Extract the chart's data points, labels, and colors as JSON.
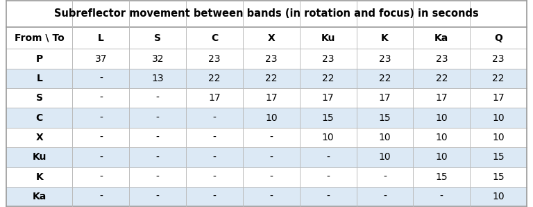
{
  "title": "Subreflector movement between bands (in rotation and focus) in seconds",
  "col_headers": [
    "From \\ To",
    "L",
    "S",
    "C",
    "X",
    "Ku",
    "K",
    "Ka",
    "Q"
  ],
  "row_headers": [
    "P",
    "L",
    "S",
    "C",
    "X",
    "Ku",
    "K",
    "Ka"
  ],
  "table_data": [
    [
      "37",
      "32",
      "23",
      "23",
      "23",
      "23",
      "23",
      "23"
    ],
    [
      "-",
      "13",
      "22",
      "22",
      "22",
      "22",
      "22",
      "22"
    ],
    [
      "-",
      "-",
      "17",
      "17",
      "17",
      "17",
      "17",
      "17"
    ],
    [
      "-",
      "-",
      "-",
      "10",
      "15",
      "15",
      "10",
      "10"
    ],
    [
      "-",
      "-",
      "-",
      "-",
      "10",
      "10",
      "10",
      "10"
    ],
    [
      "-",
      "-",
      "-",
      "-",
      "-",
      "10",
      "10",
      "15"
    ],
    [
      "-",
      "-",
      "-",
      "-",
      "-",
      "-",
      "15",
      "15"
    ],
    [
      "-",
      "-",
      "-",
      "-",
      "-",
      "-",
      "-",
      "10"
    ]
  ],
  "title_bg": "#ffffff",
  "header_bg": "#ffffff",
  "row_even_bg": "#dce9f5",
  "row_odd_bg": "#ffffff",
  "border_color": "#bbbbbb",
  "outer_border_color": "#999999",
  "title_fontsize": 10.5,
  "header_fontsize": 10,
  "cell_fontsize": 10,
  "fig_bg": "#ffffff"
}
